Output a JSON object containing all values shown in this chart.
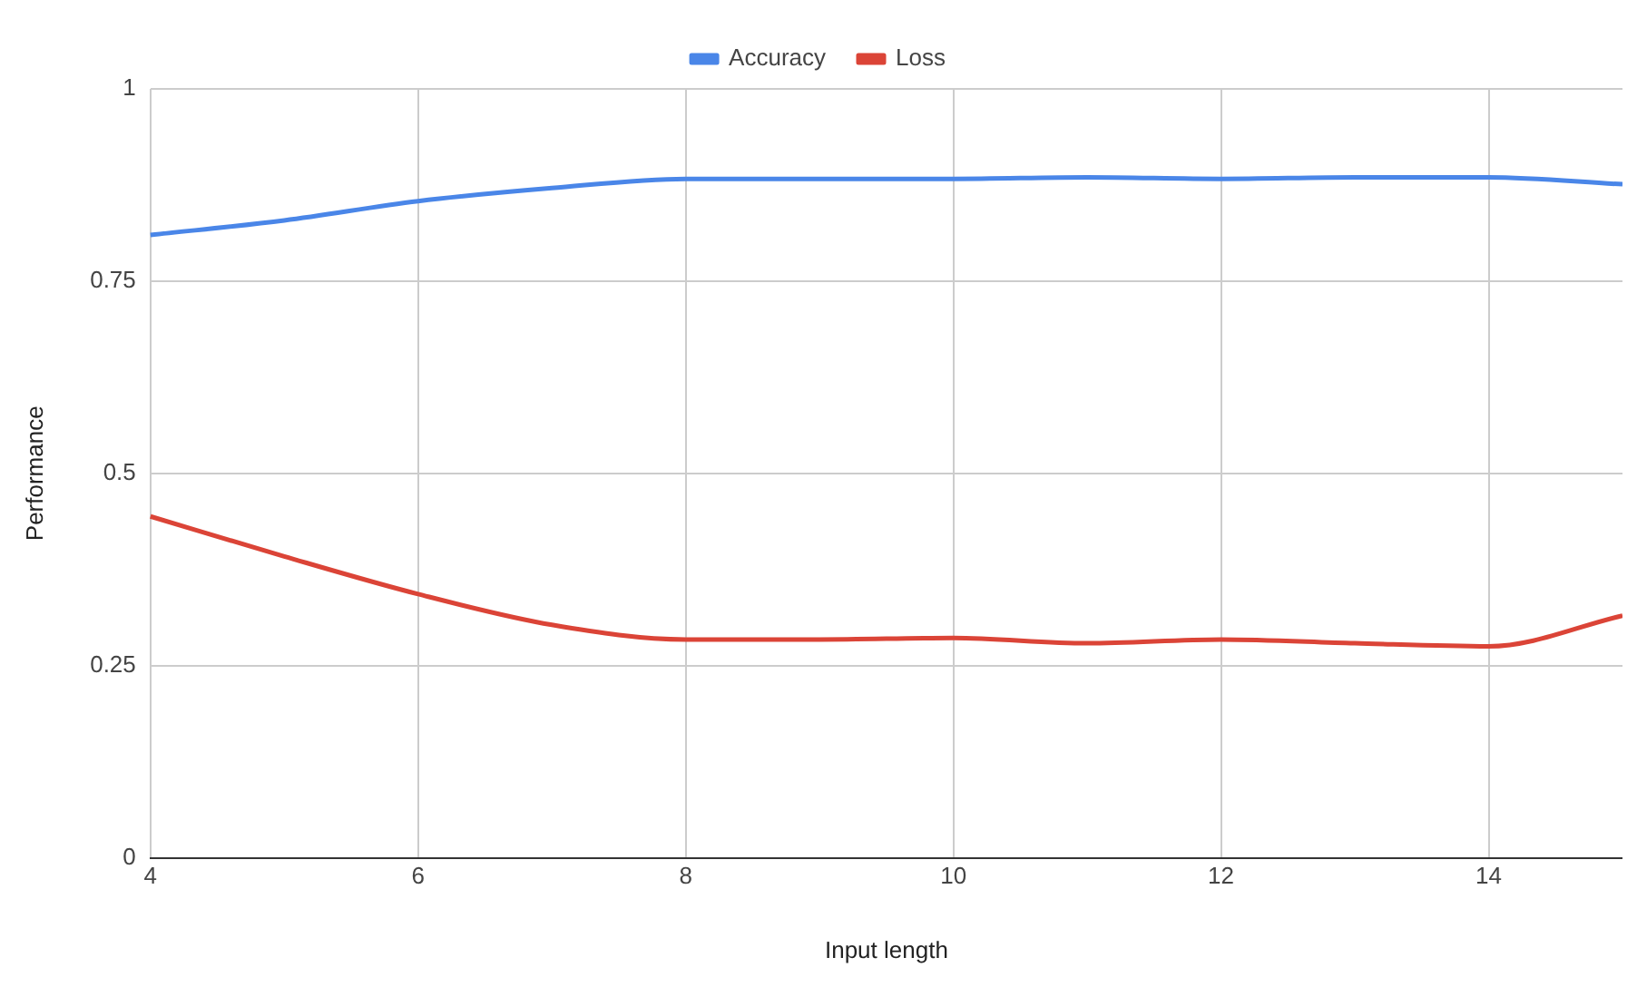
{
  "chart_data": {
    "type": "line",
    "xlabel": "Input length",
    "ylabel": "Performance",
    "x": [
      4,
      5,
      6,
      7,
      8,
      9,
      10,
      11,
      12,
      13,
      14,
      15
    ],
    "series": [
      {
        "name": "Accuracy",
        "color": "#4a86e8",
        "values": [
          0.81,
          0.829,
          0.854,
          0.871,
          0.883,
          0.883,
          0.883,
          0.885,
          0.883,
          0.885,
          0.885,
          0.876
        ]
      },
      {
        "name": "Loss",
        "color": "#db4437",
        "values": [
          0.444,
          0.392,
          0.343,
          0.303,
          0.284,
          0.284,
          0.286,
          0.279,
          0.284,
          0.279,
          0.275,
          0.315
        ]
      }
    ],
    "xlim": [
      4,
      15
    ],
    "xticks": [
      4,
      6,
      8,
      10,
      12,
      14
    ],
    "ylim": [
      0,
      1
    ],
    "yticks": [
      0,
      0.25,
      0.5,
      0.75,
      1
    ],
    "grid": true,
    "legend": "top",
    "marker": "none",
    "line_style": "solid"
  }
}
